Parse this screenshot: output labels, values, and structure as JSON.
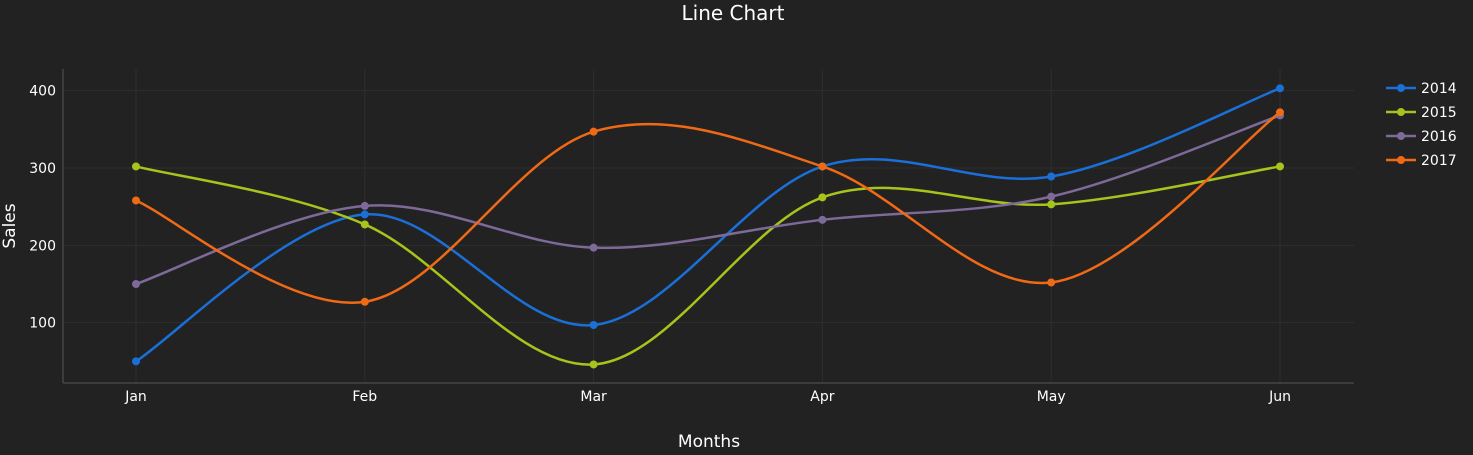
{
  "chart_data": {
    "type": "line",
    "title": "Line Chart",
    "xlabel": "Months",
    "ylabel": "Sales",
    "categories": [
      "Jan",
      "Feb",
      "Mar",
      "Apr",
      "May",
      "Jun"
    ],
    "ylim": [
      22,
      428
    ],
    "yticks": [
      100,
      200,
      300,
      400
    ],
    "grid": true,
    "smooth": true,
    "legend_position": "top-right",
    "background": "#222222",
    "series": [
      {
        "name": "2014",
        "color": "#1a6fd8",
        "values": [
          50,
          240,
          97,
          302,
          289,
          403
        ]
      },
      {
        "name": "2015",
        "color": "#a6c41c",
        "values": [
          302,
          227,
          46,
          262,
          253,
          302
        ]
      },
      {
        "name": "2016",
        "color": "#7e6a99",
        "values": [
          150,
          251,
          197,
          233,
          263,
          368
        ]
      },
      {
        "name": "2017",
        "color": "#f06a16",
        "values": [
          258,
          127,
          347,
          302,
          152,
          372
        ]
      }
    ]
  }
}
